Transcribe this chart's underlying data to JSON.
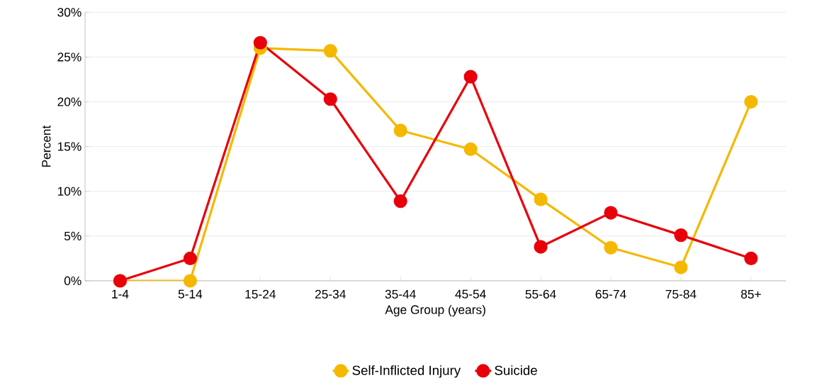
{
  "chart_data": {
    "type": "line",
    "xlabel": "Age Group (years)",
    "ylabel": "Percent",
    "categories": [
      "1-4",
      "5-14",
      "15-24",
      "25-34",
      "35-44",
      "45-54",
      "55-64",
      "65-74",
      "75-84",
      "85+"
    ],
    "series": [
      {
        "name": "Self-Inflicted Injury",
        "color": "#f5b800",
        "values": [
          0,
          0,
          26.0,
          25.7,
          16.8,
          14.7,
          9.1,
          3.7,
          1.5,
          20.0
        ]
      },
      {
        "name": "Suicide",
        "color": "#e8000b",
        "values": [
          0,
          2.5,
          26.6,
          20.3,
          8.9,
          22.8,
          3.8,
          7.6,
          5.1,
          2.5
        ]
      }
    ],
    "ylim": [
      0,
      30
    ],
    "yticks": [
      {
        "value": 0,
        "label": "0%"
      },
      {
        "value": 5,
        "label": "5%"
      },
      {
        "value": 10,
        "label": "10%"
      },
      {
        "value": 15,
        "label": "15%"
      },
      {
        "value": 20,
        "label": "20%"
      },
      {
        "value": 25,
        "label": "25%"
      },
      {
        "value": 30,
        "label": "30%"
      }
    ],
    "grid": "y",
    "legend": "bottom",
    "marker": "circle",
    "line_style": "solid"
  }
}
